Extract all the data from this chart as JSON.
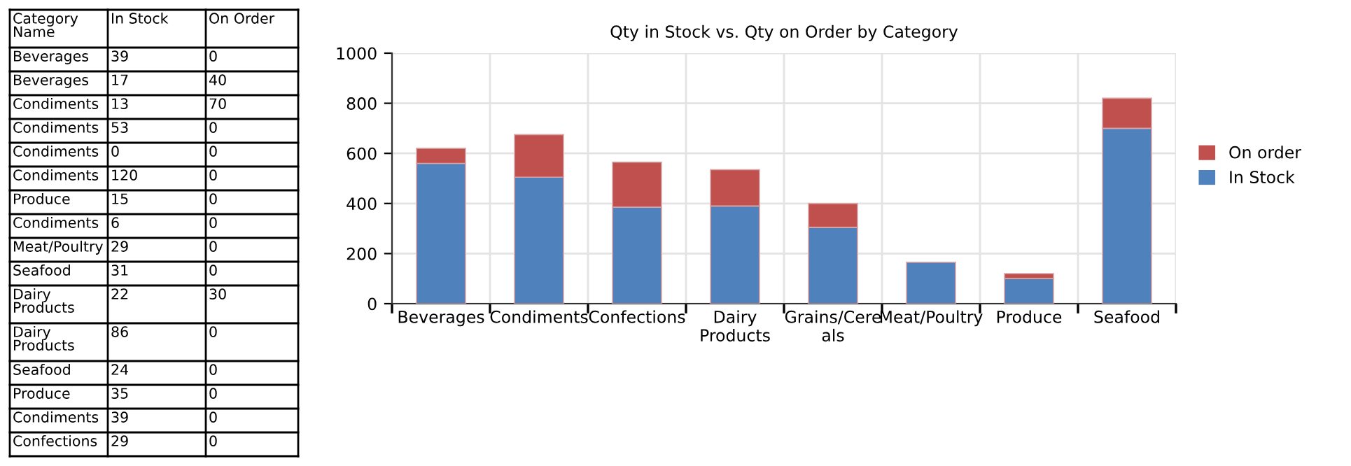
{
  "chart_data": [
    {
      "type": "other",
      "annotations": [
        "Category Name",
        "In Stock",
        "On Order",
        "Beverages",
        "39",
        "0",
        "Beverages",
        "17",
        "40",
        "Condiments",
        "13",
        "70",
        "Condiments",
        "53",
        "0",
        "Condiments",
        "0",
        "0",
        "Condiments",
        "120",
        "0",
        "Produce",
        "15",
        "0",
        "Condiments",
        "6",
        "0",
        "Meat/Poultry",
        "29",
        "0",
        "Seafood",
        "31",
        "0",
        "Dairy Products",
        "22",
        "30",
        "Dairy Products",
        "86",
        "0",
        "Seafood",
        "24",
        "0",
        "Produce",
        "35",
        "0",
        "Condiments",
        "39",
        "0",
        "Confections",
        "29",
        "0"
      ]
    },
    {
      "type": "bar",
      "title": "Qty in Stock vs. Qty on Order by Category",
      "stacked": true,
      "categories": [
        "Beverages",
        "Condiments",
        "Confections",
        "Dairy\nProducts",
        "Grains/Cere\nals",
        "Meat/Poultry",
        "Produce",
        "Seafood"
      ],
      "series": [
        {
          "name": "In Stock",
          "color": "#4f81bd",
          "values": [
            560,
            505,
            385,
            390,
            305,
            165,
            100,
            700
          ]
        },
        {
          "name": "On order",
          "color": "#c0504d",
          "values": [
            60,
            170,
            180,
            145,
            95,
            0,
            20,
            120
          ]
        }
      ],
      "ylim": [
        0,
        1000
      ],
      "yticks": [
        0,
        200,
        400,
        600,
        800,
        1000
      ],
      "grid": true,
      "legend": "right"
    }
  ]
}
